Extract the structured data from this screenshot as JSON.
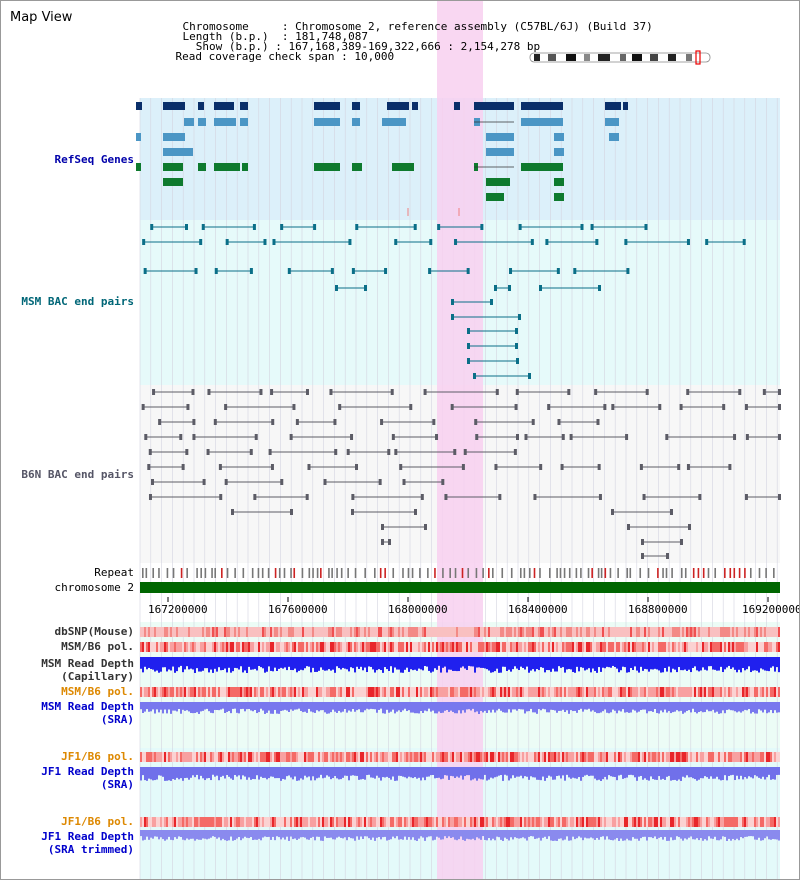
{
  "title": "Map View",
  "info": {
    "chromosome_key": "Chromosome",
    "chromosome_sep": "     : ",
    "chromosome": "Chromosome 2, reference assembly (C57BL/6J) (Build 37)",
    "length_key": "Length (b.p.)",
    "length_sep": "  : ",
    "length": "181,748,087",
    "show_key": "  Show (b.p.)",
    "show_sep": " : ",
    "show": "167,168,389-169,322,666 : 2,154,278 bp",
    "span_key": "Read coverage check span",
    "span_sep": " : ",
    "span": "10,000"
  },
  "tracks": {
    "refseq": "RefSeq Genes",
    "msm_bac": "MSM BAC end pairs",
    "b6n_bac": "B6N BAC end pairs",
    "repeat": "Repeat",
    "chromosome": "chromosome 2",
    "dbsnp": "dbSNP(Mouse)",
    "msm_b6_pol_1": "MSM/B6 pol.",
    "msm_read_depth_cap_1": "MSM Read Depth",
    "msm_read_depth_cap_2": "(Capillary)",
    "msm_b6_pol_2": "MSM/B6 pol.",
    "msm_read_depth_sra_1": "MSM Read Depth",
    "msm_read_depth_sra_2": "(SRA)",
    "jf1_b6_pol_1": "JF1/B6 pol.",
    "jf1_read_depth_sra_1": "JF1 Read Depth",
    "jf1_read_depth_sra_2": "(SRA)",
    "jf1_b6_pol_2": "JF1/B6 pol.",
    "jf1_read_depth_trim_1": "JF1 Read Depth",
    "jf1_read_depth_trim_2": "(SRA trimmed)"
  },
  "axis_ticks": [
    "167200000",
    "167600000",
    "168000000",
    "168400000",
    "168800000",
    "169200000"
  ],
  "colors": {
    "refseq_label": "#0000aa",
    "msm_label": "#006677",
    "b6n_label": "#555566",
    "pol_label_orange": "#dd8800",
    "depth_label": "#0000cc",
    "highlight": "#f8d0f0",
    "chromosome_bar": "#006600"
  }
}
